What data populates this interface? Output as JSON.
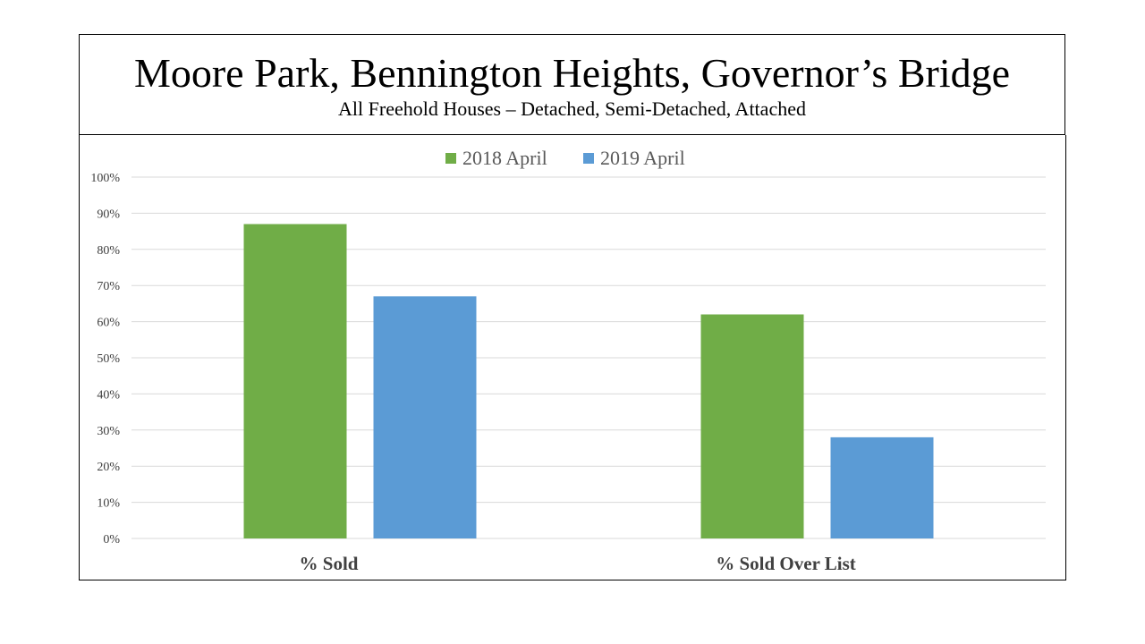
{
  "title": "Moore Park, Bennington Heights, Governor’s Bridge",
  "subtitle": "All Freehold Houses – Detached, Semi-Detached, Attached",
  "chart_data": {
    "type": "bar",
    "categories": [
      "% Sold",
      "% Sold Over List"
    ],
    "series": [
      {
        "name": "2018 April",
        "values": [
          87,
          62
        ],
        "color": "#70ad47"
      },
      {
        "name": "2019 April",
        "values": [
          67,
          28
        ],
        "color": "#5b9bd5"
      }
    ],
    "ylim": [
      0,
      100
    ],
    "yticks": [
      0,
      10,
      20,
      30,
      40,
      50,
      60,
      70,
      80,
      90,
      100
    ],
    "ytick_labels": [
      "0%",
      "10%",
      "20%",
      "30%",
      "40%",
      "50%",
      "60%",
      "70%",
      "80%",
      "90%",
      "100%"
    ],
    "grid": true,
    "legend_position": "top",
    "gridline_color": "#d9d9d9"
  }
}
